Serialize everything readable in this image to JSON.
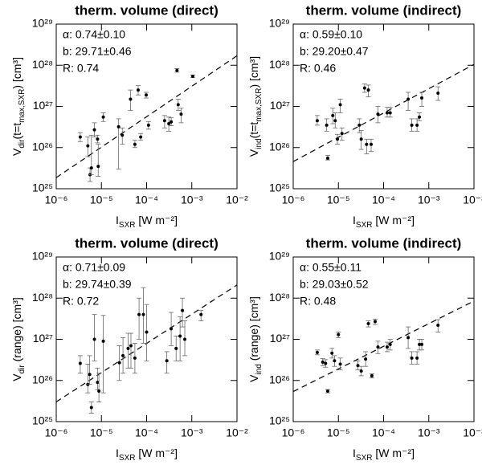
{
  "chart_data": [
    {
      "type": "scatter",
      "title": "therm. volume (direct)",
      "xlabel": [
        {
          "text": "I"
        },
        {
          "text": "SXR",
          "sub": true
        },
        {
          "text": " [W m⁻²]"
        }
      ],
      "ylabel": [
        {
          "text": "V"
        },
        {
          "text": "dir",
          "sub": true
        },
        {
          "text": "(t=t"
        },
        {
          "text": "max,SXR",
          "sub": true
        },
        {
          "text": ") [cm³]"
        }
      ],
      "annotations": [
        "α: 0.74±0.10",
        "b: 29.71±0.46",
        "R: 0.74"
      ],
      "fit": {
        "slope": 0.74,
        "intercept": 29.71
      },
      "xscale": "log",
      "yscale": "log",
      "xlim": [
        1e-06,
        0.01
      ],
      "ylim": [
        1e+25,
        1e+29
      ],
      "xticks": [
        {
          "value": 1e-06,
          "label": "10⁻⁶"
        },
        {
          "value": 1e-05,
          "label": "10⁻⁵"
        },
        {
          "value": 0.0001,
          "label": "10⁻⁴"
        },
        {
          "value": 0.001,
          "label": "10⁻³"
        },
        {
          "value": 0.01,
          "label": "10⁻²"
        }
      ],
      "yticks": [
        {
          "value": 1e+25,
          "label": "10²⁵"
        },
        {
          "value": 1e+26,
          "label": "10²⁶"
        },
        {
          "value": 1e+27,
          "label": "10²⁷"
        },
        {
          "value": 1e+28,
          "label": "10²⁸"
        },
        {
          "value": 1e+29,
          "label": "10²⁹"
        }
      ],
      "color": "#000000",
      "x": [
        3.4e-06,
        5e-06,
        5.6e-06,
        6e-06,
        7e-06,
        8.2e-06,
        8.5e-06,
        1.1e-05,
        2.4e-05,
        2.9e-05,
        4.4e-05,
        5.5e-05,
        6.5e-05,
        7.4e-05,
        9.8e-05,
        0.00011,
        0.00025,
        0.00031,
        0.00035,
        0.0005,
        0.00047,
        0.00058,
        0.00105
      ],
      "values": [
        1.8e+26,
        1.1e+26,
        2.2e+25,
        3.2e+25,
        2.7e+26,
        1.6e+26,
        3.5e+25,
        5.5e+26,
        3.2e+26,
        2e+26,
        1.5e+27,
        1.2e+26,
        2.5e+27,
        1.8e+26,
        1.9e+27,
        3.5e+26,
        4.5e+26,
        3.8e+26,
        4.2e+26,
        1.1e+27,
        7.5e+27,
        6.5e+26,
        5.4e+27
      ],
      "low": [
        1.4e+26,
        6e+25,
        1.5e+25,
        2.2e+25,
        1.8e+26,
        1.3e+26,
        2e+25,
        4.3e+26,
        3e+25,
        1.2e+26,
        8e+26,
        1e+26,
        1.9e+27,
        1.5e+26,
        1.6e+27,
        2.8e+26,
        3e+26,
        2.5e+26,
        3.4e+26,
        8e+26,
        6.8e+27,
        4e+26,
        5e+27
      ],
      "high": [
        2.3e+26,
        1.8e+26,
        3.2e+25,
        2e+26,
        4e+26,
        2e+26,
        1.2e+26,
        7e+26,
        5e+26,
        3e+26,
        2.5e+27,
        1.5e+26,
        3.2e+27,
        2.2e+26,
        2.2e+27,
        4.3e+26,
        6e+26,
        5.5e+26,
        5.3e+26,
        1.5e+27,
        8.3e+27,
        9e+26,
        5.8e+27
      ]
    },
    {
      "type": "scatter",
      "title": "therm. volume (indirect)",
      "xlabel": [
        {
          "text": "I"
        },
        {
          "text": "SXR",
          "sub": true
        },
        {
          "text": " [W m⁻²]"
        }
      ],
      "ylabel": [
        {
          "text": "V"
        },
        {
          "text": "ind",
          "sub": true
        },
        {
          "text": "(t=t"
        },
        {
          "text": "max,SXR",
          "sub": true
        },
        {
          "text": ") [cm³]"
        }
      ],
      "annotations": [
        "α: 0.59±0.10",
        "b: 29.20±0.47",
        "R: 0.46"
      ],
      "fit": {
        "slope": 0.59,
        "intercept": 29.2
      },
      "xscale": "log",
      "yscale": "log",
      "xlim": [
        1e-06,
        0.01
      ],
      "ylim": [
        1e+25,
        1e+29
      ],
      "xticks": [
        {
          "value": 1e-06,
          "label": "10⁻⁶"
        },
        {
          "value": 1e-05,
          "label": "10⁻⁵"
        },
        {
          "value": 0.0001,
          "label": "10⁻⁴"
        },
        {
          "value": 0.001,
          "label": "10⁻³"
        },
        {
          "value": 0.01,
          "label": "10⁻²"
        }
      ],
      "yticks": [
        {
          "value": 1e+25,
          "label": "10²⁵"
        },
        {
          "value": 1e+26,
          "label": "10²⁶"
        },
        {
          "value": 1e+27,
          "label": "10²⁷"
        },
        {
          "value": 1e+28,
          "label": "10²⁸"
        },
        {
          "value": 1e+29,
          "label": "10²⁹"
        }
      ],
      "color": "#000000",
      "x": [
        3.4e-06,
        5.5e-06,
        5.8e-06,
        7.5e-06,
        8.5e-06,
        9.5e-06,
        1.1e-05,
        1.2e-05,
        2.9e-05,
        3.2e-05,
        3.8e-05,
        4.2e-05,
        4.6e-05,
        5.3e-05,
        7.5e-05,
        0.00012,
        0.00014,
        0.00035,
        0.00042,
        0.00055,
        0.00062,
        0.0007,
        0.0016
      ],
      "values": [
        4.5e+26,
        3.5e+26,
        5.5e+25,
        6e+26,
        4.5e+26,
        1.6e+26,
        1.1e+27,
        2.2e+26,
        3.5e+26,
        1.6e+26,
        2.8e+27,
        1.2e+26,
        2.5e+27,
        1.2e+26,
        6.5e+26,
        7e+26,
        7e+26,
        1.5e+27,
        3.5e+26,
        3.5e+26,
        5.5e+26,
        1.6e+27,
        2.1e+27
      ],
      "low": [
        3.5e+26,
        2.5e+26,
        5e+25,
        3.8e+26,
        3e+26,
        1.2e+26,
        7e+26,
        1.5e+26,
        2.3e+26,
        9e+25,
        2.2e+27,
        7e+25,
        1.7e+27,
        8e+25,
        4e+26,
        5.5e+26,
        5.5e+26,
        8e+26,
        2.5e+26,
        2.5e+26,
        4.5e+26,
        1e+27,
        1.4e+27
      ],
      "high": [
        6e+26,
        5e+26,
        6.5e+25,
        9e+26,
        7e+26,
        2.1e+26,
        1.5e+27,
        3e+26,
        5e+26,
        2.6e+26,
        3.5e+27,
        1.6e+26,
        3.3e+27,
        1.6e+26,
        1e+27,
        9.5e+26,
        9.5e+26,
        2.2e+27,
        5e+26,
        5e+26,
        7e+26,
        2.2e+27,
        3e+27
      ]
    },
    {
      "type": "scatter",
      "title": "therm. volume (direct)",
      "xlabel": [
        {
          "text": "I"
        },
        {
          "text": "SXR",
          "sub": true
        },
        {
          "text": " [W m⁻²]"
        }
      ],
      "ylabel": [
        {
          "text": "V"
        },
        {
          "text": "dir",
          "sub": true
        },
        {
          "text": " (range) [cm³]"
        }
      ],
      "annotations": [
        "α: 0.71±0.09",
        "b: 29.74±0.39",
        "R: 0.72"
      ],
      "fit": {
        "slope": 0.71,
        "intercept": 29.74
      },
      "xscale": "log",
      "yscale": "log",
      "xlim": [
        1e-06,
        0.01
      ],
      "ylim": [
        1e+25,
        1e+29
      ],
      "xticks": [
        {
          "value": 1e-06,
          "label": "10⁻⁶"
        },
        {
          "value": 1e-05,
          "label": "10⁻⁵"
        },
        {
          "value": 0.0001,
          "label": "10⁻⁴"
        },
        {
          "value": 0.001,
          "label": "10⁻³"
        },
        {
          "value": 0.01,
          "label": "10⁻²"
        }
      ],
      "yticks": [
        {
          "value": 1e+25,
          "label": "10²⁵"
        },
        {
          "value": 1e+26,
          "label": "10²⁶"
        },
        {
          "value": 1e+27,
          "label": "10²⁷"
        },
        {
          "value": 1e+28,
          "label": "10²⁸"
        },
        {
          "value": 1e+29,
          "label": "10²⁹"
        }
      ],
      "color": "#000000",
      "x": [
        3.4e-06,
        5e-06,
        5.5e-06,
        6e-06,
        7e-06,
        8.2e-06,
        8.8e-06,
        1.1e-05,
        2.5e-05,
        3e-05,
        3.9e-05,
        4.5e-05,
        5.5e-05,
        6.8e-05,
        8.5e-05,
        0.0001,
        0.00028,
        0.00035,
        0.00045,
        0.00055,
        0.00062,
        0.0007,
        0.0016
      ],
      "values": [
        2.6e+26,
        8e+25,
        1.4e+26,
        2.2e+25,
        1e+27,
        9e+25,
        5.5e+25,
        9e+26,
        2.7e+26,
        4e+26,
        6e+26,
        7e+26,
        3.5e+26,
        4e+27,
        4e+27,
        1.5e+27,
        3e+26,
        1.8e+27,
        6e+26,
        1.2e+27,
        5e+27,
        1e+27,
        4e+27
      ],
      "low": [
        1.5e+26,
        5e+25,
        8e+25,
        1.6e+25,
        3e+26,
        6e+25,
        3e+25,
        5e+25,
        1e+26,
        1.5e+26,
        2e+26,
        2e+26,
        1.5e+26,
        1e+27,
        8e+26,
        3e+26,
        1.5e+26,
        7e+26,
        3e+26,
        3e+26,
        2e+27,
        4e+26,
        2.8e+27
      ],
      "high": [
        4e+26,
        2.5e+26,
        4e+26,
        3e+25,
        4e+27,
        2e+26,
        1.5e+26,
        3.8e+27,
        7e+26,
        1.1e+27,
        1.4e+27,
        1.4e+27,
        8e+26,
        1e+28,
        1.8e+28,
        7e+27,
        5e+26,
        4.5e+27,
        1.2e+27,
        3.5e+27,
        1e+28,
        2.8e+27,
        5e+27
      ]
    },
    {
      "type": "scatter",
      "title": "therm. volume (indirect)",
      "xlabel": [
        {
          "text": "I"
        },
        {
          "text": "SXR",
          "sub": true
        },
        {
          "text": " [W m⁻²]"
        }
      ],
      "ylabel": [
        {
          "text": "V"
        },
        {
          "text": "ind",
          "sub": true
        },
        {
          "text": " (range) [cm³]"
        }
      ],
      "annotations": [
        "α: 0.55±0.11",
        "b: 29.03±0.52",
        "R: 0.48"
      ],
      "fit": {
        "slope": 0.55,
        "intercept": 29.03
      },
      "xscale": "log",
      "yscale": "log",
      "xlim": [
        1e-06,
        0.01
      ],
      "ylim": [
        1e+25,
        1e+29
      ],
      "xticks": [
        {
          "value": 1e-06,
          "label": "10⁻⁶"
        },
        {
          "value": 1e-05,
          "label": "10⁻⁵"
        },
        {
          "value": 0.0001,
          "label": "10⁻⁴"
        },
        {
          "value": 0.001,
          "label": "10⁻³"
        },
        {
          "value": 0.01,
          "label": "10⁻²"
        }
      ],
      "yticks": [
        {
          "value": 1e+25,
          "label": "10²⁵"
        },
        {
          "value": 1e+26,
          "label": "10²⁶"
        },
        {
          "value": 1e+27,
          "label": "10²⁷"
        },
        {
          "value": 1e+28,
          "label": "10²⁸"
        },
        {
          "value": 1e+29,
          "label": "10²⁹"
        }
      ],
      "color": "#000000",
      "x": [
        3.4e-06,
        4.5e-06,
        5.2e-06,
        5.8e-06,
        7.2e-06,
        8.2e-06,
        1e-05,
        1.1e-05,
        2.7e-05,
        3.2e-05,
        4e-05,
        4.6e-05,
        5.5e-05,
        6.5e-05,
        7.5e-05,
        0.00012,
        0.00014,
        0.00035,
        0.00042,
        0.00055,
        0.00062,
        0.0007,
        0.0016
      ],
      "values": [
        4.8e+26,
        2.8e+26,
        2.6e+26,
        5.5e+25,
        4.6e+26,
        3e+26,
        1.3e+27,
        2.5e+26,
        2.3e+26,
        1.7e+26,
        3.3e+26,
        2.4e+27,
        1.3e+26,
        2.7e+27,
        6.5e+26,
        6.5e+26,
        7.5e+26,
        1.1e+27,
        3.5e+26,
        3.5e+26,
        7.5e+26,
        7.5e+26,
        2.2e+27
      ],
      "low": [
        4.2e+26,
        2.3e+26,
        2.1e+26,
        5e+25,
        3.5e+26,
        2.2e+26,
        1.1e+27,
        1.8e+26,
        1.8e+26,
        1.3e+26,
        2.2e+26,
        2e+27,
        1.15e+26,
        2.3e+27,
        4.5e+26,
        5e+26,
        5.5e+26,
        6e+26,
        2.5e+26,
        2.5e+26,
        5.5e+26,
        5.5e+26,
        1.5e+27
      ],
      "high": [
        5.5e+26,
        3.4e+26,
        3.2e+26,
        6e+25,
        6e+26,
        4e+26,
        1.5e+27,
        3.5e+26,
        3e+26,
        2.2e+26,
        5e+26,
        2.8e+27,
        1.45e+26,
        3.1e+27,
        9e+26,
        8.5e+26,
        1e+27,
        2e+27,
        5e+26,
        5e+26,
        1e+27,
        1e+27,
        3e+27
      ]
    }
  ]
}
